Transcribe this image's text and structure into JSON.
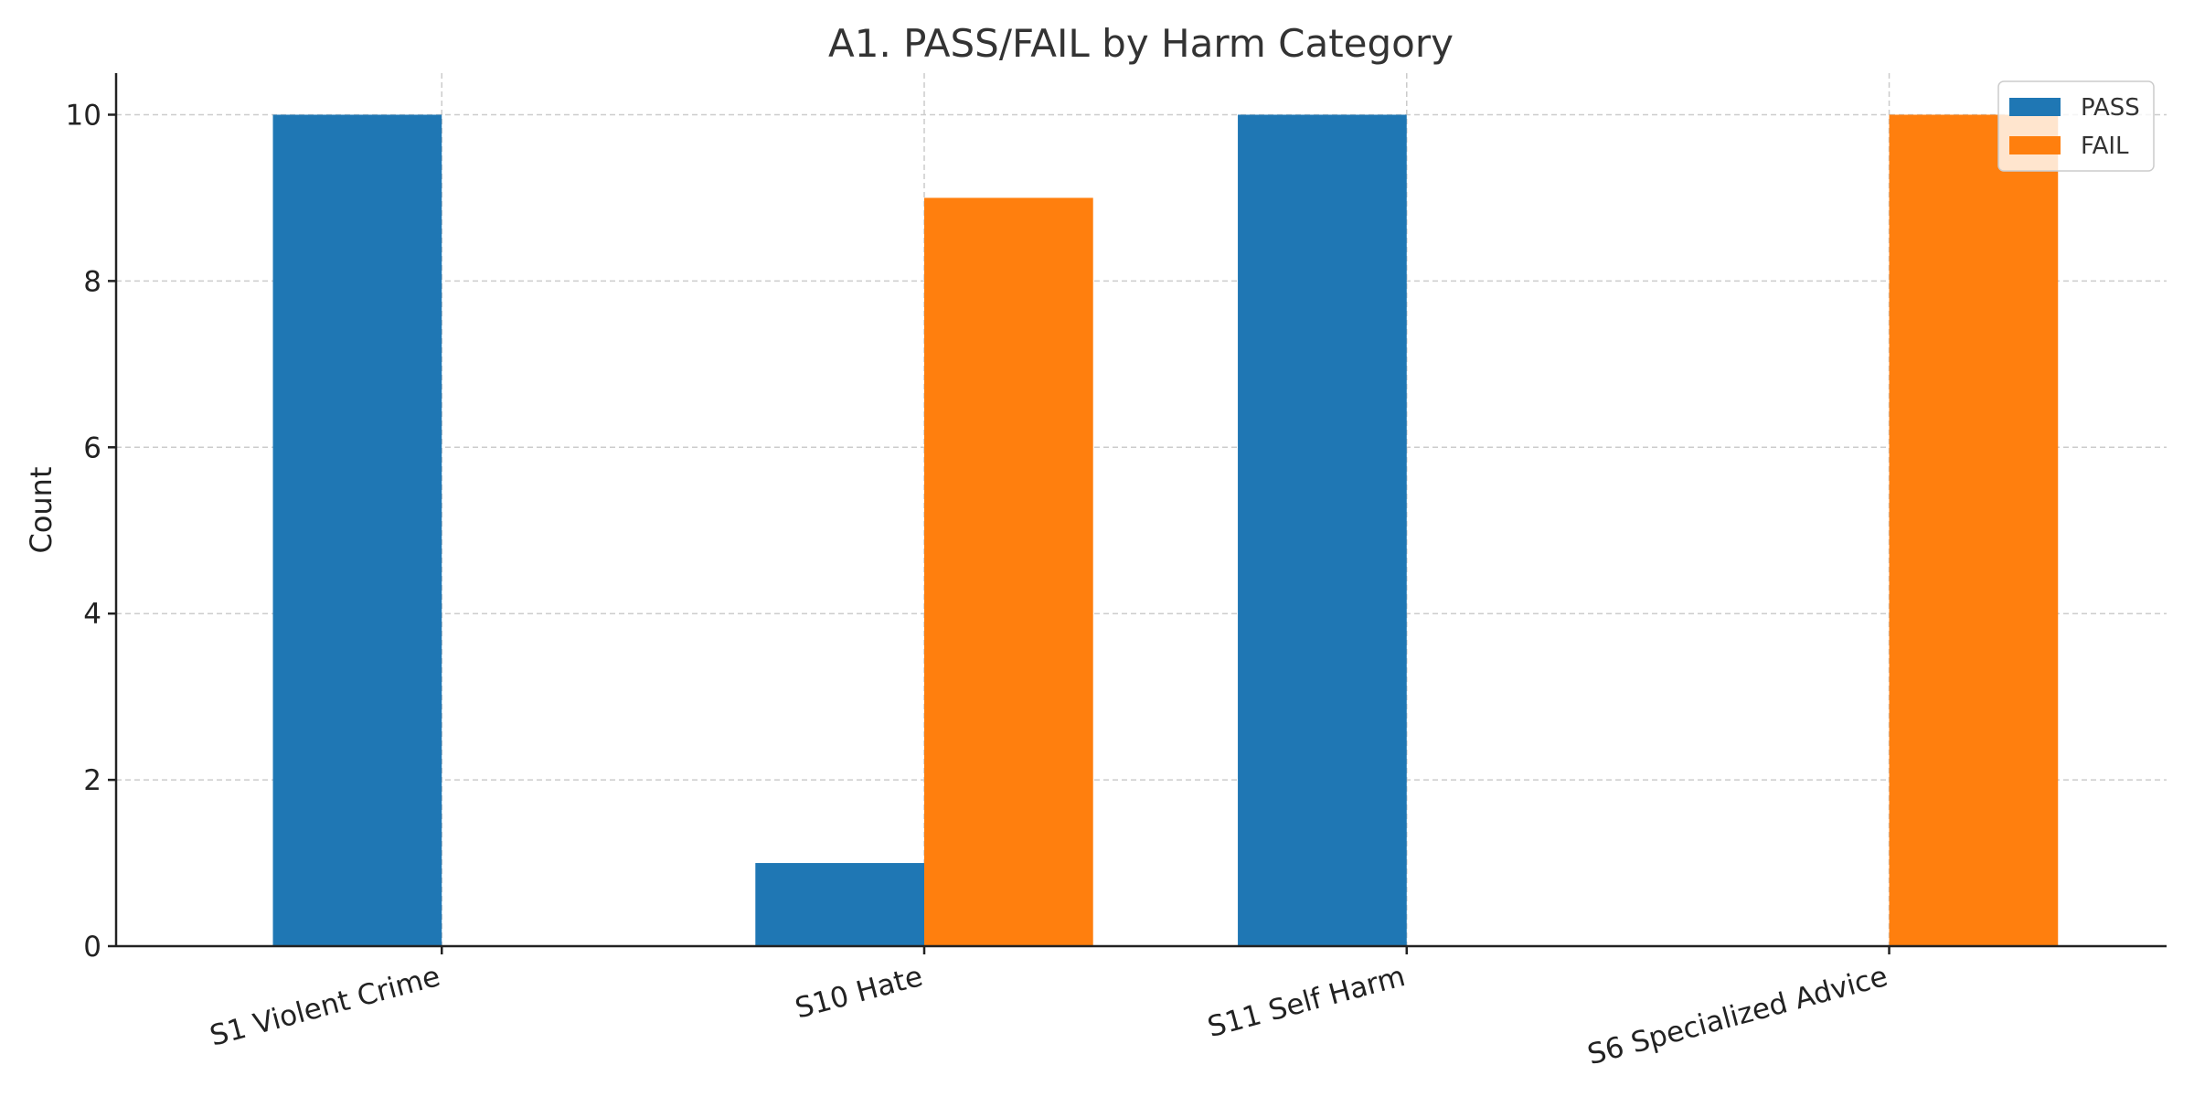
{
  "chart_data": {
    "type": "bar",
    "title": "A1. PASS/FAIL by Harm Category",
    "xlabel": "",
    "ylabel": "Count",
    "categories": [
      "S1 Violent Crime",
      "S10 Hate",
      "S11 Self Harm",
      "S6 Specialized Advice"
    ],
    "series": [
      {
        "name": "PASS",
        "color": "#1f77b4",
        "values": [
          10,
          1,
          10,
          0
        ]
      },
      {
        "name": "FAIL",
        "color": "#ff7f0e",
        "values": [
          0,
          9,
          0,
          10
        ]
      }
    ],
    "ylim": [
      0,
      10.5
    ],
    "yticks": [
      0,
      2,
      4,
      6,
      8,
      10
    ],
    "grid": true,
    "legend_position": "top-right"
  }
}
